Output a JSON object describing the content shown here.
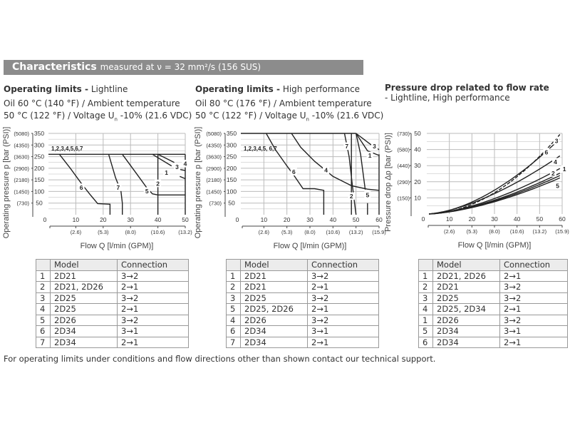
{
  "header": {
    "title": "Characteristics",
    "subtitle": "measured at ν = 32 mm²/s (156 SUS)"
  },
  "sections": [
    {
      "title_bold": "Operating limits -",
      "title_rest": " Lightline",
      "cond1": "Oil 60 °C (140 °F) / Ambient temperature",
      "cond2a": "50 °C (122 °F) / Voltage U",
      "cond2sub": "n",
      "cond2b": " -10% (21.6 VDC)"
    },
    {
      "title_bold": "Operating limits -",
      "title_rest": " High performance",
      "cond1": "Oil 80 °C (176 °F) / Ambient temperature",
      "cond2a": "50 °C (122 °F) / Voltage U",
      "cond2sub": "n",
      "cond2b": " -10% (21.6 VDC)"
    },
    {
      "title_bold": "Pressure drop related to flow rate",
      "title_rest": "- Lightline, High performance"
    }
  ],
  "chart_data": [
    {
      "type": "line",
      "title": "Operating limits - Lightline",
      "xlabel": "Flow Q [l/min (GPM)]",
      "ylabel": "Operating pressure p [bar (PSI)]",
      "xlim": [
        0,
        50
      ],
      "ylim": [
        0,
        350
      ],
      "grid": true,
      "xticks": [
        0,
        10,
        20,
        30,
        40,
        50
      ],
      "xticks_gpm": [
        {
          "x": 10,
          "label": "(2.6)"
        },
        {
          "x": 20,
          "label": "(5.3)"
        },
        {
          "x": 30,
          "label": "(8.0)"
        },
        {
          "x": 40,
          "label": "(10.6)"
        },
        {
          "x": 50,
          "label": "(13.2)"
        }
      ],
      "yticks": [
        50,
        100,
        150,
        200,
        250,
        300,
        350
      ],
      "yticks_psi": [
        "(730)",
        "(1450)",
        "(2180)",
        "(2900)",
        "(3630)",
        "(4350)",
        "(5080)"
      ],
      "annotation": "1,2,3,4,5,6,7",
      "series": [
        {
          "name": "all",
          "points": [
            [
              0,
              260
            ],
            [
              50,
              260
            ]
          ]
        },
        {
          "name": "6",
          "points": [
            [
              4,
              260
            ],
            [
              8,
              200
            ],
            [
              12,
              135
            ],
            [
              15,
              90
            ],
            [
              18,
              48
            ],
            [
              22.5,
              45
            ],
            [
              22.5,
              0
            ]
          ],
          "label_at": [
            12,
            108
          ]
        },
        {
          "name": "7",
          "points": [
            [
              22,
              260
            ],
            [
              24.5,
              160
            ],
            [
              26.5,
              100
            ],
            [
              27,
              50
            ],
            [
              27,
              0
            ]
          ],
          "label_at": [
            25.5,
            108
          ]
        },
        {
          "name": "5",
          "points": [
            [
              27,
              260
            ],
            [
              32,
              180
            ],
            [
              36,
              115
            ],
            [
              38,
              90
            ],
            [
              40,
              85
            ],
            [
              50,
              85
            ]
          ],
          "label_at": [
            36,
            92
          ]
        },
        {
          "name": "2",
          "points": [
            [
              40,
              260
            ],
            [
              40,
              0
            ]
          ],
          "label_at": [
            40,
            125
          ]
        },
        {
          "name": "3",
          "points": [
            [
              40,
              260
            ],
            [
              46,
              225
            ]
          ],
          "label_at": [
            47,
            196
          ]
        },
        {
          "name": "1",
          "points": [
            [
              38,
              260
            ],
            [
              45,
              210
            ]
          ],
          "label_at": [
            46,
            172
          ]
        },
        {
          "name": "4",
          "points": [
            [
              50,
              260
            ],
            [
              50,
              0
            ]
          ],
          "label_at": [
            50,
            210
          ]
        },
        {
          "name": "",
          "points": [
            [
              48,
              195
            ],
            [
              50,
              190
            ]
          ]
        },
        {
          "name": "",
          "points": [
            [
              48,
              165
            ],
            [
              50,
              155
            ]
          ]
        }
      ]
    },
    {
      "type": "line",
      "title": "Operating limits - High performance",
      "xlabel": "Flow Q [l/min (GPM)]",
      "ylabel": "Operating pressure p [bar (PSI)]",
      "xlim": [
        0,
        60
      ],
      "ylim": [
        0,
        350
      ],
      "grid": true,
      "xticks": [
        0,
        10,
        20,
        30,
        40,
        50,
        60
      ],
      "xticks_gpm": [
        {
          "x": 10,
          "label": "(2.6)"
        },
        {
          "x": 20,
          "label": "(5.3)"
        },
        {
          "x": 30,
          "label": "(8.0)"
        },
        {
          "x": 40,
          "label": "(10.6)"
        },
        {
          "x": 50,
          "label": "(13.2)"
        },
        {
          "x": 60,
          "label": "(15.9)"
        }
      ],
      "yticks": [
        50,
        100,
        150,
        200,
        250,
        300,
        350
      ],
      "yticks_psi": [
        "(730)",
        "(1450)",
        "(2180)",
        "(2900)",
        "(3630)",
        "(4350)",
        "(5080)"
      ],
      "annotation": "1,2,3,4,5,  6,7",
      "series": [
        {
          "name": "all",
          "points": [
            [
              0,
              350
            ],
            [
              50,
              350
            ]
          ]
        },
        {
          "name": "6",
          "points": [
            [
              11,
              350
            ],
            [
              15,
              280
            ],
            [
              20,
              210
            ],
            [
              23,
              170
            ],
            [
              27,
              112
            ],
            [
              32,
              112
            ],
            [
              36,
              105
            ],
            [
              36,
              0
            ]
          ],
          "label_at": [
            23,
            175
          ]
        },
        {
          "name": "4",
          "points": [
            [
              22,
              350
            ],
            [
              26,
              290
            ],
            [
              32,
              230
            ],
            [
              40,
              165
            ],
            [
              48,
              125
            ],
            [
              55,
              110
            ],
            [
              60,
              105
            ]
          ],
          "label_at": [
            37,
            182
          ]
        },
        {
          "name": "7",
          "points": [
            [
              45,
              350
            ],
            [
              47,
              250
            ],
            [
              48.5,
              120
            ],
            [
              50,
              0
            ]
          ],
          "label_at": [
            46,
            285
          ]
        },
        {
          "name": "2",
          "points": [
            [
              48,
              350
            ],
            [
              48,
              0
            ]
          ],
          "label_at": [
            48,
            70
          ]
        },
        {
          "name": "5",
          "points": [
            [
              50,
              350
            ],
            [
              52,
              260
            ],
            [
              54,
              108
            ]
          ],
          "label_at": [
            55,
            75
          ]
        },
        {
          "name": "",
          "points": [
            [
              55,
              50
            ],
            [
              55,
              0
            ]
          ]
        },
        {
          "name": "3",
          "points": [
            [
              50,
              350
            ],
            [
              56,
              305
            ],
            [
              60,
              280
            ]
          ],
          "label_at": [
            58,
            285
          ]
        },
        {
          "name": "1",
          "points": [
            [
              50,
              350
            ],
            [
              55,
              275
            ],
            [
              60,
              255
            ]
          ],
          "label_at": [
            56,
            245
          ]
        },
        {
          "name": "",
          "points": [
            [
              60,
              260
            ],
            [
              60,
              0
            ]
          ]
        }
      ]
    },
    {
      "type": "line",
      "title": "Pressure drop related to flow rate",
      "xlabel": "Flow Q [l/min (GPM)]",
      "ylabel": "Pressure drop Δp [bar (PSI)]",
      "xlim": [
        0,
        60
      ],
      "ylim": [
        0,
        50
      ],
      "grid": true,
      "xticks": [
        0,
        10,
        20,
        30,
        40,
        50,
        60
      ],
      "xticks_gpm": [
        {
          "x": 10,
          "label": "(2.6)"
        },
        {
          "x": 20,
          "label": "(5.3)"
        },
        {
          "x": 30,
          "label": "(8.0)"
        },
        {
          "x": 40,
          "label": "(10.6)"
        },
        {
          "x": 50,
          "label": "(13.2)"
        },
        {
          "x": 60,
          "label": "(15.9)"
        }
      ],
      "yticks": [
        10,
        20,
        30,
        40,
        50
      ],
      "yticks_psi": [
        "(150)",
        "(290)",
        "(440)",
        "(580)",
        "(730)"
      ],
      "series": [
        {
          "name": "6",
          "end": 51,
          "exp": 1.95,
          "dashed": true,
          "label_at": [
            53,
            37
          ]
        },
        {
          "name": "3",
          "end": 48,
          "exp": 1.7,
          "label_at": [
            57.5,
            44
          ]
        },
        {
          "name": "4",
          "end": 37,
          "exp": 1.55,
          "label_at": [
            57,
            31
          ]
        },
        {
          "name": "1",
          "end": 29,
          "exp": 1.6,
          "label_at": [
            57.5,
            26.5
          ]
        },
        {
          "name": "2",
          "end": 26,
          "exp": 1.6,
          "label_at": [
            56,
            24
          ]
        },
        {
          "name": "",
          "end": 24.5,
          "exp": 1.6
        },
        {
          "name": "5",
          "end": 23,
          "exp": 1.6,
          "label_at": [
            58,
            21.5
          ]
        }
      ]
    }
  ],
  "tables": [
    {
      "headers": [
        "",
        "Model",
        "Connection"
      ],
      "rows": [
        [
          "1",
          "2D21",
          "3→2"
        ],
        [
          "2",
          "2D21, 2D26",
          "2→1"
        ],
        [
          "3",
          "2D25",
          "3→2"
        ],
        [
          "4",
          "2D25",
          "2→1"
        ],
        [
          "5",
          "2D26",
          "3→2"
        ],
        [
          "6",
          "2D34",
          "3→1"
        ],
        [
          "7",
          "2D34",
          "2→1"
        ]
      ]
    },
    {
      "headers": [
        "",
        "Model",
        "Connection"
      ],
      "rows": [
        [
          "1",
          "2D21",
          "3→2"
        ],
        [
          "2",
          "2D21",
          "2→1"
        ],
        [
          "3",
          "2D25",
          "3→2"
        ],
        [
          "5",
          "2D25,   2D26",
          "2→1"
        ],
        [
          "4",
          "2D26",
          "3→2"
        ],
        [
          "6",
          "2D34",
          "3→1"
        ],
        [
          "7",
          "2D34",
          "2→1"
        ]
      ]
    },
    {
      "headers": [
        "",
        "Model",
        "Connection"
      ],
      "rows": [
        [
          "1",
          "2D21, 2D26",
          "2→1"
        ],
        [
          "2",
          "2D21",
          "3→2"
        ],
        [
          "3",
          "2D25",
          "3→2"
        ],
        [
          "4",
          "2D25, 2D34",
          "2→1"
        ],
        [
          "1",
          "2D26",
          "3→2"
        ],
        [
          "5",
          "2D34",
          "3→1"
        ],
        [
          "6",
          "2D34",
          "2→1"
        ]
      ]
    }
  ],
  "footer": "For operating limits under conditions and flow directions other than shown contact our technical support."
}
